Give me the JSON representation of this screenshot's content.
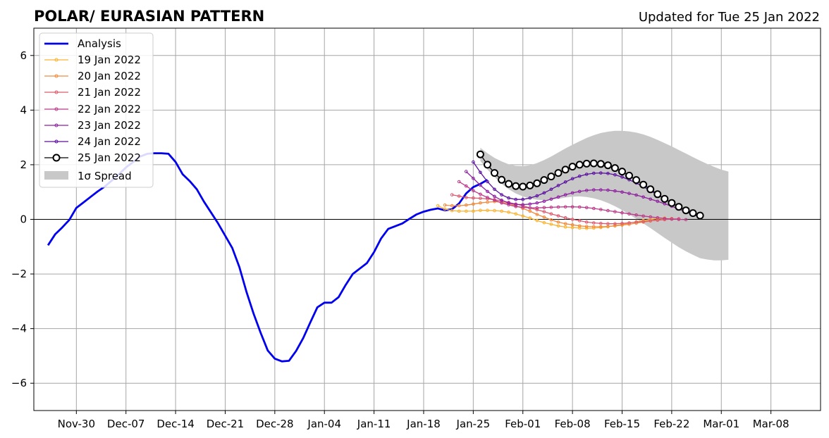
{
  "header": {
    "title": "POLAR/ EURASIAN  PATTERN",
    "updated": "Updated for Tue 25 Jan 2022"
  },
  "chart_data": {
    "type": "line",
    "title": "POLAR/ EURASIAN  PATTERN",
    "xlabel": "",
    "ylabel": "",
    "grid": true,
    "legend_position": "top-left",
    "xlim": [
      "2021-11-24",
      "2022-03-15"
    ],
    "ylim": [
      -7,
      7
    ],
    "yticks": [
      -6,
      -4,
      -2,
      0,
      2,
      4,
      6
    ],
    "ytick_labels": [
      "−6",
      "−4",
      "−2",
      "0",
      "2",
      "4",
      "6"
    ],
    "xticks": [
      {
        "date": "2021-11-30",
        "label": "Nov-30"
      },
      {
        "date": "2021-12-07",
        "label": "Dec-07"
      },
      {
        "date": "2021-12-14",
        "label": "Dec-14"
      },
      {
        "date": "2021-12-21",
        "label": "Dec-21"
      },
      {
        "date": "2021-12-28",
        "label": "Dec-28"
      },
      {
        "date": "2022-01-04",
        "label": "Jan-04"
      },
      {
        "date": "2022-01-11",
        "label": "Jan-11"
      },
      {
        "date": "2022-01-18",
        "label": "Jan-18"
      },
      {
        "date": "2022-01-25",
        "label": "Jan-25"
      },
      {
        "date": "2022-02-01",
        "label": "Feb-01"
      },
      {
        "date": "2022-02-08",
        "label": "Feb-08"
      },
      {
        "date": "2022-02-15",
        "label": "Feb-15"
      },
      {
        "date": "2022-02-22",
        "label": "Feb-22"
      },
      {
        "date": "2022-03-01",
        "label": "Mar-01"
      },
      {
        "date": "2022-03-08",
        "label": "Mar-08"
      }
    ],
    "analysis": {
      "name": "Analysis",
      "color": "#0000ee",
      "start": "2021-11-26",
      "values": [
        -0.95,
        -0.55,
        -0.3,
        -0.02,
        0.42,
        0.62,
        0.82,
        1.02,
        1.2,
        1.42,
        1.65,
        1.9,
        2.1,
        2.3,
        2.4,
        2.42,
        2.42,
        2.4,
        2.1,
        1.65,
        1.4,
        1.1,
        0.65,
        0.25,
        -0.15,
        -0.6,
        -1.05,
        -1.75,
        -2.65,
        -3.45,
        -4.15,
        -4.8,
        -5.1,
        -5.2,
        -5.18,
        -4.82,
        -4.35,
        -3.78,
        -3.22,
        -3.05,
        -3.05,
        -2.85,
        -2.4,
        -2.0,
        -1.8,
        -1.6,
        -1.2,
        -0.7,
        -0.35,
        -0.25,
        -0.15,
        0.02,
        0.18,
        0.28,
        0.35,
        0.4,
        0.33,
        0.37,
        0.58,
        0.95,
        1.18,
        1.3,
        1.45
      ]
    },
    "forecasts": [
      {
        "name": "19 Jan 2022",
        "color": "#f9b330",
        "start": "2022-01-20",
        "values": [
          0.5,
          0.38,
          0.32,
          0.3,
          0.3,
          0.3,
          0.33,
          0.33,
          0.32,
          0.3,
          0.26,
          0.2,
          0.12,
          0.05,
          -0.04,
          -0.12,
          -0.18,
          -0.24,
          -0.28,
          -0.3,
          -0.32,
          -0.33,
          -0.32,
          -0.3,
          -0.27,
          -0.23,
          -0.19,
          -0.14,
          -0.09,
          -0.04,
          0.0,
          0.03,
          0.05
        ]
      },
      {
        "name": "20 Jan 2022",
        "color": "#f08a3c",
        "start": "2022-01-21",
        "values": [
          0.52,
          0.5,
          0.5,
          0.52,
          0.56,
          0.6,
          0.63,
          0.65,
          0.63,
          0.58,
          0.5,
          0.4,
          0.3,
          0.18,
          0.08,
          -0.02,
          -0.1,
          -0.16,
          -0.2,
          -0.24,
          -0.26,
          -0.27,
          -0.27,
          -0.26,
          -0.24,
          -0.21,
          -0.18,
          -0.14,
          -0.1,
          -0.06,
          -0.02,
          0.01,
          0.03
        ]
      },
      {
        "name": "21 Jan 2022",
        "color": "#dc5a6e",
        "start": "2022-01-22",
        "values": [
          0.9,
          0.85,
          0.8,
          0.78,
          0.77,
          0.75,
          0.72,
          0.68,
          0.62,
          0.56,
          0.5,
          0.42,
          0.35,
          0.28,
          0.2,
          0.13,
          0.06,
          0.0,
          -0.05,
          -0.1,
          -0.13,
          -0.15,
          -0.16,
          -0.16,
          -0.15,
          -0.13,
          -0.1,
          -0.08,
          -0.05,
          -0.03,
          -0.01,
          0.01,
          0.02
        ]
      },
      {
        "name": "22 Jan 2022",
        "color": "#bb3a8a",
        "start": "2022-01-23",
        "values": [
          1.38,
          1.22,
          1.05,
          0.92,
          0.8,
          0.7,
          0.6,
          0.53,
          0.47,
          0.44,
          0.42,
          0.42,
          0.43,
          0.44,
          0.45,
          0.46,
          0.46,
          0.45,
          0.43,
          0.4,
          0.36,
          0.32,
          0.28,
          0.24,
          0.2,
          0.16,
          0.12,
          0.09,
          0.06,
          0.03,
          0.01,
          0.0,
          -0.01
        ]
      },
      {
        "name": "23 Jan 2022",
        "color": "#8e1fa0",
        "start": "2022-01-24",
        "values": [
          1.75,
          1.5,
          1.25,
          1.02,
          0.84,
          0.7,
          0.6,
          0.55,
          0.54,
          0.56,
          0.6,
          0.66,
          0.74,
          0.82,
          0.9,
          0.97,
          1.02,
          1.06,
          1.08,
          1.08,
          1.07,
          1.04,
          1.0,
          0.95,
          0.89,
          0.82,
          0.74,
          0.66,
          0.57,
          0.48,
          0.38,
          0.28,
          0.18,
          0.08
        ]
      },
      {
        "name": "24 Jan 2022",
        "color": "#5a0f9f",
        "start": "2022-01-25",
        "values": [
          2.1,
          1.72,
          1.38,
          1.1,
          0.9,
          0.78,
          0.73,
          0.73,
          0.78,
          0.86,
          0.97,
          1.1,
          1.24,
          1.37,
          1.49,
          1.58,
          1.65,
          1.69,
          1.7,
          1.68,
          1.63,
          1.55,
          1.45,
          1.33,
          1.2,
          1.05,
          0.9,
          0.75,
          0.6,
          0.45,
          0.32,
          0.2,
          0.09
        ]
      },
      {
        "name": "25 Jan 2022",
        "color": "#000000",
        "start": "2022-01-26",
        "values": [
          2.38,
          2.0,
          1.7,
          1.45,
          1.3,
          1.22,
          1.2,
          1.24,
          1.32,
          1.44,
          1.57,
          1.7,
          1.82,
          1.93,
          2.0,
          2.04,
          2.05,
          2.03,
          1.98,
          1.88,
          1.75,
          1.6,
          1.44,
          1.27,
          1.1,
          0.92,
          0.75,
          0.6,
          0.46,
          0.33,
          0.23,
          0.14
        ]
      }
    ],
    "spread": {
      "name": "1σ Spread",
      "color": "#c8c8c8",
      "start": "2022-01-26",
      "upper": [
        2.62,
        2.42,
        2.25,
        2.12,
        2.02,
        1.96,
        1.95,
        1.98,
        2.06,
        2.17,
        2.3,
        2.45,
        2.6,
        2.73,
        2.86,
        2.98,
        3.08,
        3.16,
        3.21,
        3.24,
        3.24,
        3.22,
        3.18,
        3.11,
        3.02,
        2.91,
        2.79,
        2.67,
        2.54,
        2.41,
        2.28,
        2.15,
        2.03,
        1.92,
        1.82,
        1.75
      ],
      "lower": [
        2.14,
        1.82,
        1.55,
        1.3,
        1.1,
        0.95,
        0.84,
        0.76,
        0.72,
        0.7,
        0.72,
        0.75,
        0.8,
        0.83,
        0.84,
        0.82,
        0.77,
        0.7,
        0.6,
        0.48,
        0.34,
        0.18,
        0.02,
        -0.15,
        -0.32,
        -0.5,
        -0.68,
        -0.85,
        -1.02,
        -1.17,
        -1.3,
        -1.42,
        -1.47,
        -1.5,
        -1.5,
        -1.48
      ]
    }
  }
}
